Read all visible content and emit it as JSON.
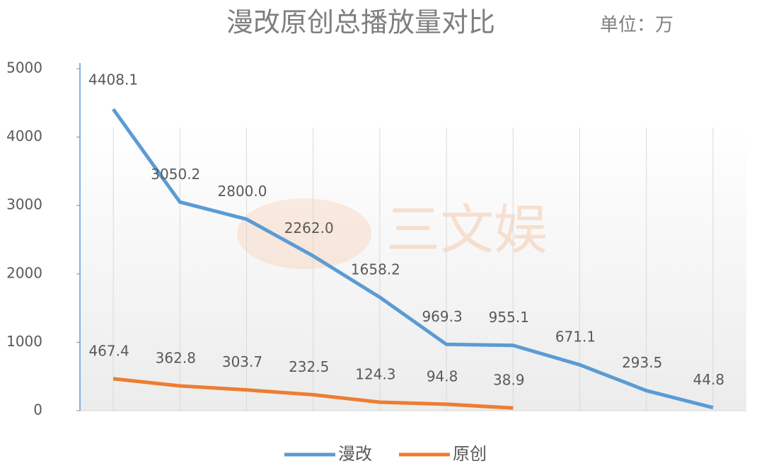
{
  "chart_data": {
    "type": "line",
    "title": "漫改原创总播放量对比",
    "subtitle": "单位：万",
    "watermark": "三文娱",
    "categories": [
      null,
      null,
      null,
      null,
      null,
      null,
      null,
      null,
      null,
      null
    ],
    "series": [
      {
        "name": "漫改",
        "color": "#5b9bd5",
        "values": [
          4408.1,
          3050.2,
          2800.0,
          2262.0,
          1658.2,
          969.3,
          955.1,
          671.1,
          293.5,
          44.8
        ],
        "value_labels": [
          "4408.1",
          "3050.2",
          "2800.0",
          "2262.0",
          "1658.2",
          "969.3",
          "955.1",
          "671.1",
          "293.5",
          "44.8"
        ]
      },
      {
        "name": "原创",
        "color": "#ed7d31",
        "values": [
          467.4,
          362.8,
          303.7,
          232.5,
          124.3,
          94.8,
          38.9,
          null,
          null,
          null
        ],
        "value_labels": [
          "467.4",
          "362.8",
          "303.7",
          "232.5",
          "124.3",
          "94.8",
          "38.9",
          null,
          null,
          null
        ]
      }
    ],
    "ylim": [
      0,
      5000
    ],
    "yticks": [
      0,
      1000,
      2000,
      3000,
      4000,
      5000
    ],
    "grid": true
  }
}
